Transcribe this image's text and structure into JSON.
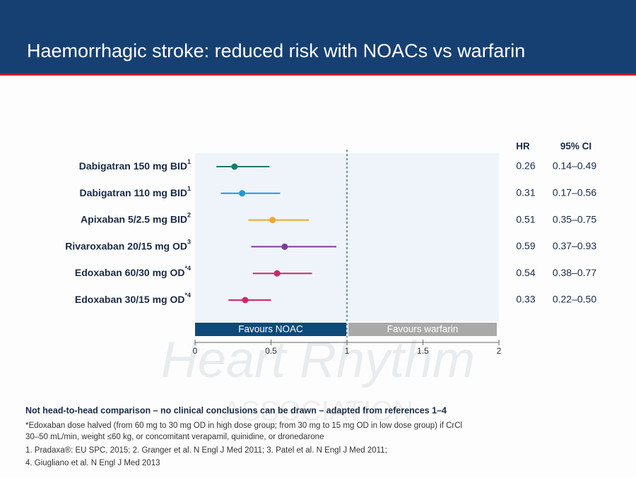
{
  "header": {
    "title": "Haemorrhagic stroke: reduced risk with NOACs vs warfarin"
  },
  "watermark": [
    "Heart Rhythm",
    "ASSOCIATION"
  ],
  "chart_data": {
    "type": "forest",
    "categories": [
      "Dabigatran 150 mg BID",
      "Dabigatran 110 mg BID",
      "Apixaban 5/2.5 mg BID",
      "Rivaroxaban 20/15 mg OD",
      "Edoxaban 60/30 mg OD",
      "Edoxaban 30/15 mg OD"
    ],
    "refs": [
      "1",
      "1",
      "2",
      "3",
      "*4",
      "*4"
    ],
    "values": [
      0.26,
      0.31,
      0.51,
      0.59,
      0.54,
      0.33
    ],
    "lower": [
      0.14,
      0.17,
      0.35,
      0.37,
      0.38,
      0.22
    ],
    "upper": [
      0.49,
      0.56,
      0.75,
      0.93,
      0.77,
      0.5
    ],
    "ci_labels": [
      "0.14–0.49",
      "0.17–0.56",
      "0.35–0.75",
      "0.37–0.93",
      "0.38–0.77",
      "0.22–0.50"
    ],
    "colors": [
      "#1b7a6c",
      "#1d9bd7",
      "#f4a62a",
      "#7c3c9e",
      "#d4246c",
      "#d4246c"
    ],
    "column_headers": [
      "HR",
      "95% CI"
    ],
    "xlim": [
      0,
      2
    ],
    "xticks": [
      0,
      0.5,
      1,
      1.5,
      2
    ],
    "ref_line": 1,
    "favours": [
      "Favours NOAC",
      "Favours warfarin"
    ],
    "favours_colors": [
      "#0d4a7a",
      "#a9a9a9"
    ]
  },
  "footnotes": {
    "bold": "Not head-to-head comparison – no clinical conclusions can be drawn – adapted from references 1–4",
    "lines": [
      "*Edoxaban dose halved (from 60 mg to 30 mg OD in high dose group; from 30 mg to 15 mg OD in low dose group) if CrCl",
      "30–50 mL/min, weight ≤60 kg, or concomitant verapamil, quinidine, or dronedarone",
      "1. Pradaxa®: EU SPC, 2015; 2. Granger et al. N Engl J Med 2011; 3. Patel et al. N Engl J Med 2011;",
      "4. Giugliano et al. N Engl J Med 2013"
    ]
  }
}
